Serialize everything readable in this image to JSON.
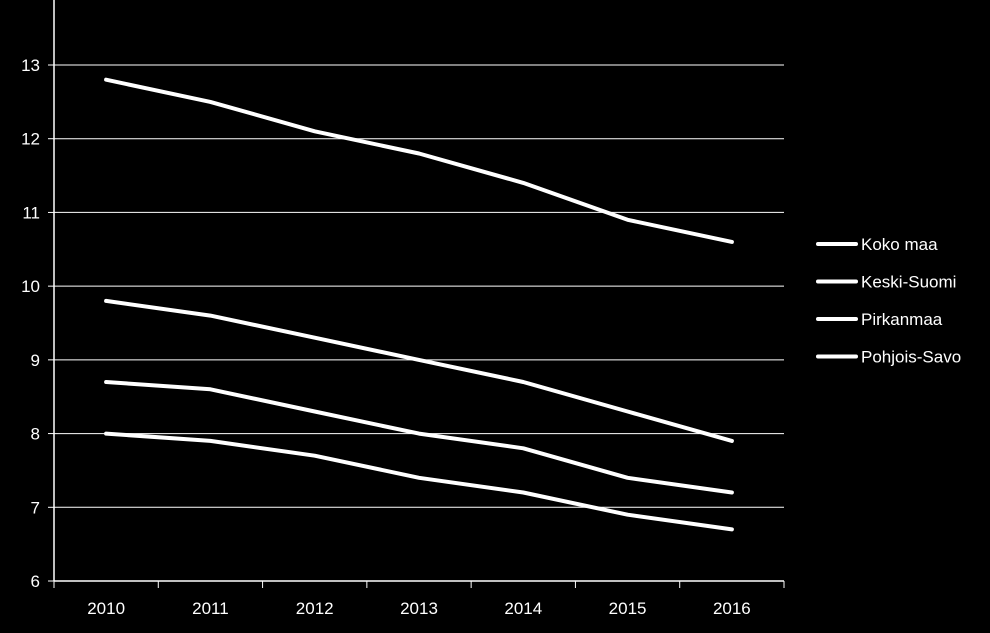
{
  "chart_data": {
    "type": "line",
    "title": "",
    "xlabel": "",
    "ylabel": "",
    "x": [
      "2010",
      "2011",
      "2012",
      "2013",
      "2014",
      "2015",
      "2016"
    ],
    "ylim": [
      6,
      13
    ],
    "yticks": [
      6,
      7,
      8,
      9,
      10,
      11,
      12,
      13
    ],
    "grid": true,
    "legend_position": "right",
    "series": [
      {
        "name": "Koko maa",
        "values": [
          12.8,
          12.5,
          12.1,
          11.8,
          11.4,
          10.9,
          10.6
        ]
      },
      {
        "name": "Keski-Suomi",
        "values": [
          9.8,
          9.6,
          9.3,
          9.0,
          8.7,
          8.3,
          7.9
        ]
      },
      {
        "name": "Pirkanmaa",
        "values": [
          8.7,
          8.6,
          8.3,
          8.0,
          7.8,
          7.4,
          7.2
        ]
      },
      {
        "name": "Pohjois-Savo",
        "values": [
          8.0,
          7.9,
          7.7,
          7.4,
          7.2,
          6.9,
          6.7
        ]
      }
    ],
    "colors": {
      "background": "#000000",
      "line": "#ffffff",
      "grid": "#ffffff",
      "text": "#ffffff"
    }
  }
}
